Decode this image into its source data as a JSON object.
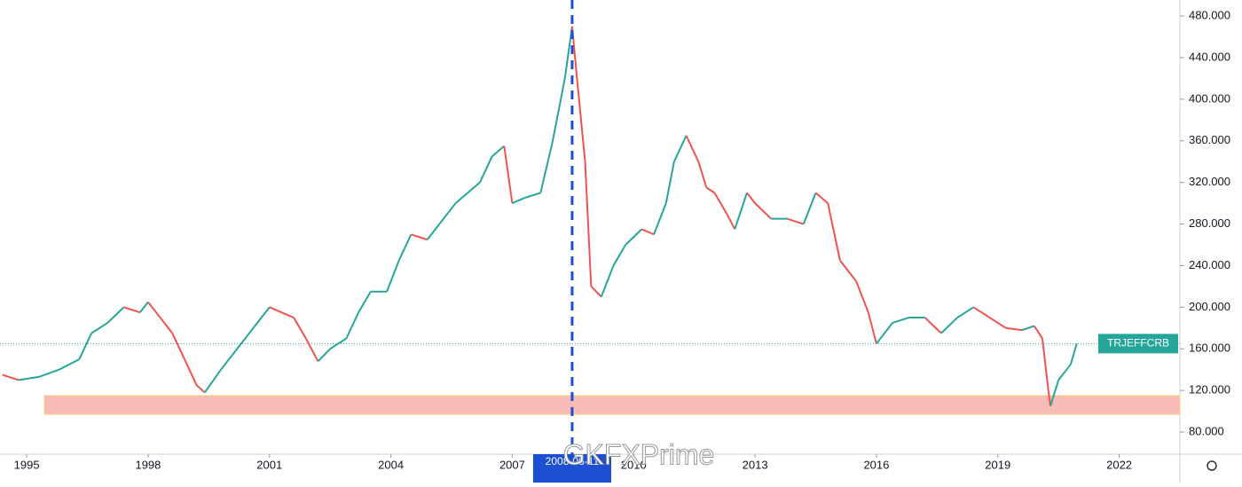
{
  "chart_data": {
    "type": "line",
    "symbol": "TRJEFFCRB",
    "last_value": 165,
    "crosshair": {
      "x": 2008.48,
      "label": "2008-06-11"
    },
    "watermark": "GKFXPrime",
    "zone": {
      "from_x": 1995.44,
      "low": 97,
      "high": 115,
      "color": "#f8bbb8"
    },
    "up_color": "#26a69a",
    "down_color": "#ef5350",
    "x": [
      1994.4,
      1994.8,
      1995.3,
      1995.8,
      1996.3,
      1996.6,
      1997.0,
      1997.4,
      1997.8,
      1998.0,
      1998.3,
      1998.6,
      1998.9,
      1999.2,
      1999.4,
      1999.8,
      2000.2,
      2000.6,
      2001.0,
      2001.3,
      2001.6,
      2001.9,
      2002.2,
      2002.5,
      2002.9,
      2003.2,
      2003.5,
      2003.9,
      2004.2,
      2004.5,
      2004.9,
      2005.3,
      2005.6,
      2005.9,
      2006.2,
      2006.5,
      2006.8,
      2007.0,
      2007.3,
      2007.7,
      2008.0,
      2008.3,
      2008.48,
      2008.6,
      2008.8,
      2008.95,
      2009.2,
      2009.5,
      2009.8,
      2010.2,
      2010.5,
      2010.8,
      2011.0,
      2011.3,
      2011.6,
      2011.8,
      2012.0,
      2012.3,
      2012.5,
      2012.8,
      2013.0,
      2013.4,
      2013.8,
      2014.2,
      2014.5,
      2014.8,
      2015.1,
      2015.5,
      2015.8,
      2016.0,
      2016.4,
      2016.8,
      2017.2,
      2017.6,
      2018.0,
      2018.4,
      2018.8,
      2019.2,
      2019.6,
      2019.9,
      2020.1,
      2020.25,
      2020.3,
      2020.5,
      2020.8,
      2020.95
    ],
    "values": [
      135,
      130,
      133,
      140,
      150,
      175,
      185,
      200,
      195,
      205,
      190,
      175,
      150,
      125,
      118,
      140,
      160,
      180,
      200,
      195,
      190,
      170,
      148,
      160,
      170,
      195,
      215,
      215,
      245,
      270,
      265,
      285,
      300,
      310,
      320,
      345,
      355,
      300,
      305,
      310,
      360,
      420,
      470,
      420,
      340,
      220,
      210,
      240,
      260,
      275,
      270,
      300,
      340,
      365,
      340,
      315,
      310,
      290,
      275,
      310,
      300,
      285,
      285,
      280,
      310,
      300,
      245,
      225,
      195,
      165,
      185,
      190,
      190,
      175,
      190,
      200,
      190,
      180,
      178,
      182,
      170,
      120,
      105,
      130,
      145,
      165
    ],
    "xlim": [
      1994.34,
      2023.5
    ],
    "xticks": [
      1995,
      1998,
      2001,
      2004,
      2007,
      2010,
      2013,
      2016,
      2019,
      2022
    ],
    "ylim": [
      58.7,
      495.4
    ],
    "yticks": [
      {
        "value": 80,
        "label": "80.000"
      },
      {
        "value": 120,
        "label": "120.000"
      },
      {
        "value": 160,
        "label": "160.000"
      },
      {
        "value": 200,
        "label": "200.000"
      },
      {
        "value": 240,
        "label": "240.000"
      },
      {
        "value": 280,
        "label": "280.000"
      },
      {
        "value": 320,
        "label": "320.000"
      },
      {
        "value": 360,
        "label": "360.000"
      },
      {
        "value": 400,
        "label": "400.000"
      },
      {
        "value": 440,
        "label": "440.000"
      },
      {
        "value": 480,
        "label": "480.000"
      }
    ]
  }
}
